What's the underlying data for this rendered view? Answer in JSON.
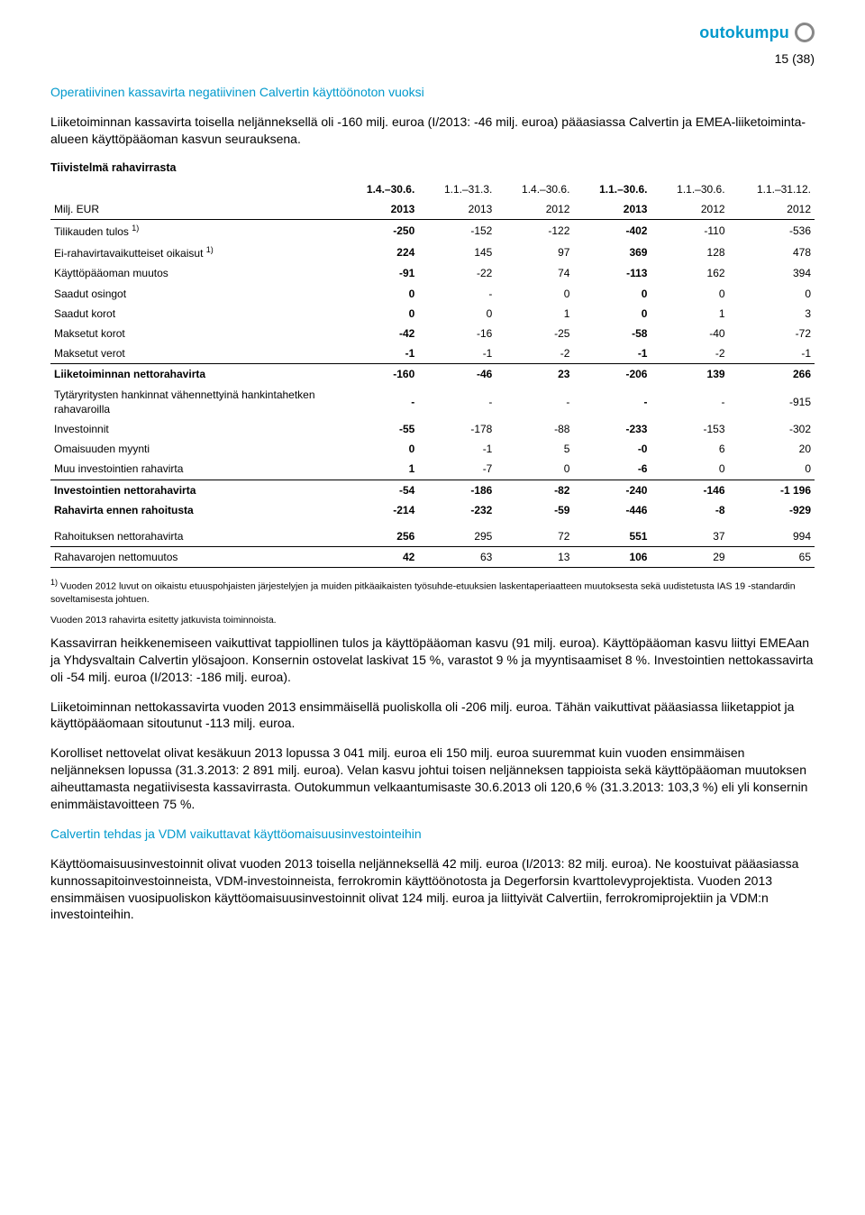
{
  "brand": {
    "name": "outokumpu"
  },
  "page_number": "15 (38)",
  "section1": {
    "title": "Operatiivinen kassavirta negatiivinen Calvertin käyttöönoton vuoksi",
    "intro": "Liiketoiminnan kassavirta toisella neljänneksellä oli -160 milj. euroa (I/2013: -46 milj. euroa) pääasiassa Calvertin ja EMEA-liiketoiminta-alueen käyttöpääoman kasvun seurauksena."
  },
  "table": {
    "title": "Tiivistelmä rahavirrasta",
    "row_header_label": "Milj. EUR",
    "columns": [
      {
        "period": "1.4.–30.6.",
        "year": "2013",
        "bold": true
      },
      {
        "period": "1.1.–31.3.",
        "year": "2013",
        "bold": false
      },
      {
        "period": "1.4.–30.6.",
        "year": "2012",
        "bold": false
      },
      {
        "period": "1.1.–30.6.",
        "year": "2013",
        "bold": true
      },
      {
        "period": "1.1.–30.6.",
        "year": "2012",
        "bold": false
      },
      {
        "period": "1.1.–31.12.",
        "year": "2012",
        "bold": false
      }
    ],
    "rows": [
      {
        "label": "Tilikauden tulos ",
        "sup": "1)",
        "vals": [
          "-250",
          "-152",
          "-122",
          "-402",
          "-110",
          "-536"
        ],
        "bold": false,
        "border_top": true
      },
      {
        "label": "Ei-rahavirtavaikutteiset oikaisut ",
        "sup": "1)",
        "vals": [
          "224",
          "145",
          "97",
          "369",
          "128",
          "478"
        ],
        "bold": false
      },
      {
        "label": "Käyttöpääoman muutos",
        "vals": [
          "-91",
          "-22",
          "74",
          "-113",
          "162",
          "394"
        ],
        "bold": false
      },
      {
        "label": "Saadut osingot",
        "vals": [
          "0",
          "-",
          "0",
          "0",
          "0",
          "0"
        ],
        "bold": false
      },
      {
        "label": "Saadut korot",
        "vals": [
          "0",
          "0",
          "1",
          "0",
          "1",
          "3"
        ],
        "bold": false
      },
      {
        "label": "Maksetut korot",
        "vals": [
          "-42",
          "-16",
          "-25",
          "-58",
          "-40",
          "-72"
        ],
        "bold": false
      },
      {
        "label": "Maksetut verot",
        "vals": [
          "-1",
          "-1",
          "-2",
          "-1",
          "-2",
          "-1"
        ],
        "bold": false,
        "border_bottom": true
      },
      {
        "label": "Liiketoiminnan nettorahavirta",
        "vals": [
          "-160",
          "-46",
          "23",
          "-206",
          "139",
          "266"
        ],
        "bold": true
      },
      {
        "label": "Tytäryritysten hankinnat vähennettyinä hankintahetken rahavaroilla",
        "vals": [
          "-",
          "-",
          "-",
          "-",
          "-",
          "-915"
        ],
        "bold": false
      },
      {
        "label": "Investoinnit",
        "vals": [
          "-55",
          "-178",
          "-88",
          "-233",
          "-153",
          "-302"
        ],
        "bold": false
      },
      {
        "label": "Omaisuuden myynti",
        "vals": [
          "0",
          "-1",
          "5",
          "-0",
          "6",
          "20"
        ],
        "bold": false
      },
      {
        "label": "Muu investointien rahavirta",
        "vals": [
          "1",
          "-7",
          "0",
          "-6",
          "0",
          "0"
        ],
        "bold": false,
        "border_bottom": true
      },
      {
        "label": "Investointien nettorahavirta",
        "vals": [
          "-54",
          "-186",
          "-82",
          "-240",
          "-146",
          "-1 196"
        ],
        "bold": true
      },
      {
        "label": "Rahavirta ennen rahoitusta",
        "vals": [
          "-214",
          "-232",
          "-59",
          "-446",
          "-8",
          "-929"
        ],
        "bold": true
      },
      {
        "label": "Rahoituksen nettorahavirta",
        "vals": [
          "256",
          "295",
          "72",
          "551",
          "37",
          "994"
        ],
        "bold": false,
        "spacer": true,
        "border_bottom": true
      },
      {
        "label": "Rahavarojen nettomuutos",
        "vals": [
          "42",
          "63",
          "13",
          "106",
          "29",
          "65"
        ],
        "bold": false,
        "border_bottom": true
      }
    ]
  },
  "footnotes": {
    "note1_sup": "1)",
    "note1": " Vuoden 2012 luvut on oikaistu etuuspohjaisten järjestelyjen ja muiden pitkäaikaisten työsuhde-etuuksien laskentaperiaatteen muutoksesta sekä uudistetusta IAS 19 -standardin soveltamisesta johtuen.",
    "note2": "Vuoden 2013 rahavirta esitetty jatkuvista toiminnoista."
  },
  "paragraphs": {
    "p1": "Kassavirran heikkenemiseen vaikuttivat tappiollinen tulos ja käyttöpääoman kasvu (91 milj. euroa). Käyttöpääoman kasvu liittyi EMEAan ja Yhdysvaltain Calvertin ylösajoon. Konsernin ostovelat laskivat 15 %, varastot 9 % ja myyntisaamiset 8 %. Investointien nettokassavirta oli -54 milj. euroa (I/2013: -186 milj. euroa).",
    "p2": "Liiketoiminnan nettokassavirta vuoden 2013 ensimmäisellä puoliskolla oli -206 milj. euroa. Tähän vaikuttivat pääasiassa liiketappiot ja käyttöpääomaan sitoutunut -113 milj. euroa.",
    "p3": "Korolliset nettovelat olivat kesäkuun 2013 lopussa 3 041 milj. euroa eli 150 milj. euroa suuremmat kuin vuoden ensimmäisen neljänneksen lopussa (31.3.2013: 2 891 milj. euroa). Velan kasvu johtui toisen neljänneksen tappioista sekä käyttöpääoman muutoksen aiheuttamasta negatiivisesta kassavirrasta. Outokummun velkaantumisaste 30.6.2013 oli 120,6 % (31.3.2013: 103,3 %) eli yli konsernin enimmäistavoitteen 75 %."
  },
  "section2": {
    "title": "Calvertin tehdas ja VDM vaikuttavat käyttöomaisuusinvestointeihin",
    "body": "Käyttöomaisuusinvestoinnit olivat vuoden 2013 toisella neljänneksellä 42 milj. euroa (I/2013: 82 milj. euroa). Ne koostuivat pääasiassa kunnossapitoinvestoinneista, VDM-investoinneista, ferrokromin käyttöönotosta ja Degerforsin kvarttolevyprojektista. Vuoden 2013 ensimmäisen vuosipuoliskon käyttöomaisuusinvestoinnit olivat 124 milj. euroa ja liittyivät Calvertiin, ferrokromiprojektiin ja VDM:n investointeihin."
  },
  "colors": {
    "accent": "#0099cc",
    "text": "#000000",
    "bg": "#ffffff",
    "grid": "#000000"
  },
  "fonts": {
    "body_size_pt": 10.5,
    "title_size_pt": 10.5,
    "table_size_pt": 9,
    "footnote_size_pt": 8
  }
}
